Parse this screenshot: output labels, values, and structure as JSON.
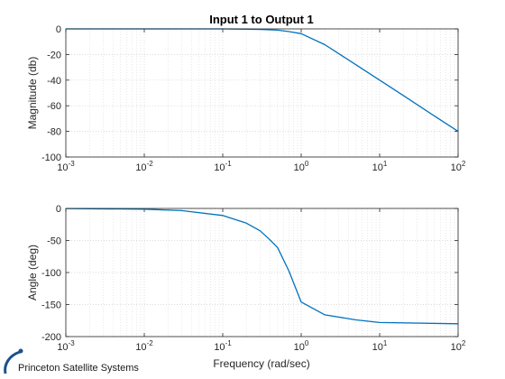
{
  "chart_data": [
    {
      "type": "line",
      "title": "Input 1 to Output 1",
      "xlabel": "",
      "ylabel": "Magnitude (db)",
      "xscale": "log",
      "xlim": [
        0.001,
        100
      ],
      "ylim": [
        -100,
        0
      ],
      "yticks": [
        0,
        -20,
        -40,
        -60,
        -80,
        -100
      ],
      "grid": true,
      "series": [
        {
          "color": "#0072BD",
          "x": [
            0.001,
            0.01,
            0.1,
            0.2,
            0.3,
            0.5,
            0.7,
            1,
            2,
            5,
            10,
            20,
            50,
            100
          ],
          "y": [
            0,
            0,
            0,
            -0.2,
            -0.4,
            -1,
            -2.1,
            -3.7,
            -12.3,
            -28,
            -40,
            -52,
            -68,
            -80
          ]
        }
      ]
    },
    {
      "type": "line",
      "title": "",
      "xlabel": "Frequency (rad/sec)",
      "ylabel": "Angle (deg)",
      "xscale": "log",
      "xlim": [
        0.001,
        100
      ],
      "ylim": [
        -200,
        0
      ],
      "yticks": [
        0,
        -50,
        -100,
        -150,
        -200
      ],
      "grid": true,
      "series": [
        {
          "color": "#0072BD",
          "x": [
            0.001,
            0.01,
            0.03,
            0.1,
            0.2,
            0.3,
            0.4,
            0.5,
            0.7,
            1,
            2,
            5,
            10,
            100
          ],
          "y": [
            -0.1,
            -1.1,
            -3.4,
            -11,
            -23,
            -35,
            -49,
            -61,
            -98,
            -146,
            -166,
            -174,
            -178,
            -180
          ]
        }
      ]
    }
  ],
  "xticks": [
    {
      "base": "10",
      "exp": "-3",
      "value": 0.001
    },
    {
      "base": "10",
      "exp": "-2",
      "value": 0.01
    },
    {
      "base": "10",
      "exp": "-1",
      "value": 0.1
    },
    {
      "base": "10",
      "exp": "0",
      "value": 1
    },
    {
      "base": "10",
      "exp": "1",
      "value": 10
    },
    {
      "base": "10",
      "exp": "2",
      "value": 100
    }
  ],
  "logo": {
    "text": "Princeton Satellite Systems"
  }
}
